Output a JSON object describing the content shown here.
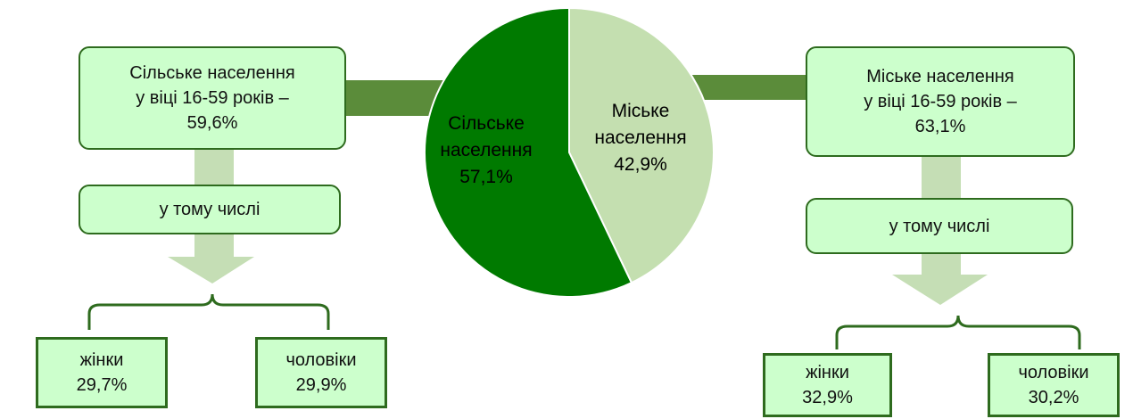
{
  "chart_data": {
    "type": "pie",
    "categories": [
      "Міське населення",
      "Сільське населення"
    ],
    "values": [
      42.9,
      57.1
    ],
    "value_labels": [
      "42,9%",
      "57,1%"
    ],
    "colors": [
      "#c4dfb0",
      "#007a00"
    ]
  },
  "left": {
    "main": [
      "Сільське населення",
      "у віці 16-59 років –",
      "59,6%"
    ],
    "sub": "у тому числі",
    "women": [
      "жінки",
      "29,7%"
    ],
    "men": [
      "чоловіки",
      "29,9%"
    ]
  },
  "right": {
    "main": [
      "Міське населення",
      "у віці 16-59 років –",
      "63,1%"
    ],
    "sub": "у тому числі",
    "women": [
      "жінки",
      "32,9%"
    ],
    "men": [
      "чоловіки",
      "30,2%"
    ]
  }
}
